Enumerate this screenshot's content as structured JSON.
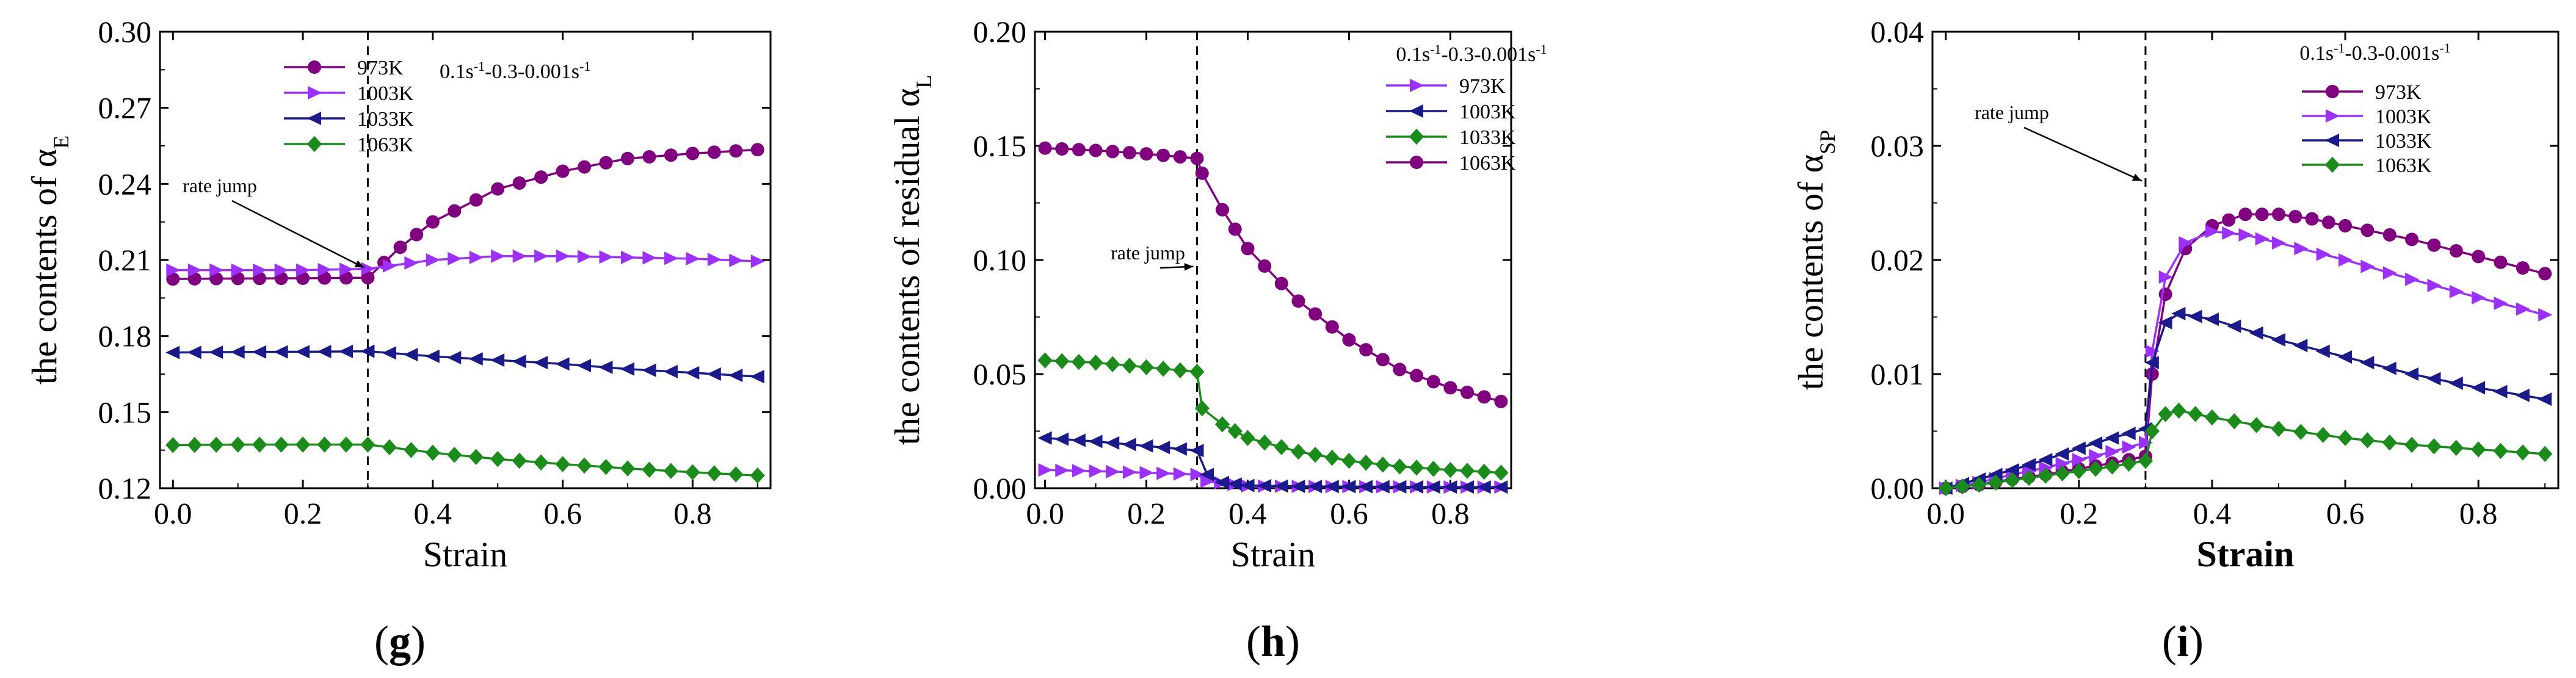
{
  "chart_data": [
    {
      "type": "line",
      "panel_label": "(g)",
      "panel_letter": "g",
      "xlabel": "Strain",
      "ylabel": "the contents of  α",
      "ylabel_sub": "E",
      "xlim": [
        -0.02,
        0.92
      ],
      "ylim": [
        0.12,
        0.3
      ],
      "xticks": [
        0.0,
        0.2,
        0.4,
        0.6,
        0.8
      ],
      "xtick_labels": [
        "0.0",
        "0.2",
        "0.4",
        "0.6",
        "0.8"
      ],
      "yticks": [
        0.12,
        0.15,
        0.18,
        0.21,
        0.24,
        0.27,
        0.3
      ],
      "ytick_labels": [
        "0.12",
        "0.15",
        "0.18",
        "0.21",
        "0.24",
        "0.27",
        "0.30"
      ],
      "rate_jump_x": 0.3,
      "annotation": "rate jump",
      "annotation_point": [
        0.3,
        0.205
      ],
      "condition_label": "0.1s-1-0.3-0.001s-1",
      "condition_parts": [
        "0.1s",
        "-1",
        "-0.3-0.001s",
        "-1"
      ],
      "legend_position": "top-center",
      "series": [
        {
          "name": "973K",
          "color": "#800080",
          "marker": "circle",
          "points": [
            [
              0.0,
              0.2025
            ],
            [
              0.1,
              0.2027
            ],
            [
              0.2,
              0.2028
            ],
            [
              0.3,
              0.203
            ],
            [
              0.35,
              0.215
            ],
            [
              0.4,
              0.225
            ],
            [
              0.5,
              0.238
            ],
            [
              0.6,
              0.245
            ],
            [
              0.7,
              0.25
            ],
            [
              0.8,
              0.252
            ],
            [
              0.9,
              0.2535
            ]
          ]
        },
        {
          "name": "1003K",
          "color": "#9b30ff",
          "marker": "triangle-right",
          "points": [
            [
              0.0,
              0.206
            ],
            [
              0.1,
              0.206
            ],
            [
              0.2,
              0.206
            ],
            [
              0.3,
              0.2065
            ],
            [
              0.4,
              0.21
            ],
            [
              0.5,
              0.2115
            ],
            [
              0.6,
              0.2115
            ],
            [
              0.7,
              0.211
            ],
            [
              0.8,
              0.2105
            ],
            [
              0.9,
              0.2095
            ]
          ]
        },
        {
          "name": "1033K",
          "color": "#1a1a8c",
          "marker": "triangle-left",
          "points": [
            [
              0.0,
              0.1735
            ],
            [
              0.1,
              0.1737
            ],
            [
              0.2,
              0.1738
            ],
            [
              0.3,
              0.174
            ],
            [
              0.4,
              0.172
            ],
            [
              0.5,
              0.1705
            ],
            [
              0.6,
              0.169
            ],
            [
              0.7,
              0.167
            ],
            [
              0.8,
              0.1655
            ],
            [
              0.9,
              0.164
            ]
          ]
        },
        {
          "name": "1063K",
          "color": "#1a8c1a",
          "marker": "diamond",
          "points": [
            [
              0.0,
              0.137
            ],
            [
              0.1,
              0.1372
            ],
            [
              0.2,
              0.1372
            ],
            [
              0.3,
              0.1372
            ],
            [
              0.4,
              0.134
            ],
            [
              0.5,
              0.1315
            ],
            [
              0.6,
              0.1295
            ],
            [
              0.7,
              0.1278
            ],
            [
              0.8,
              0.1263
            ],
            [
              0.9,
              0.125
            ]
          ]
        }
      ]
    },
    {
      "type": "line",
      "panel_label": "(h)",
      "panel_letter": "h",
      "xlabel": "Strain",
      "ylabel": "the contents of  residual α",
      "ylabel_sub": "L",
      "xlim": [
        -0.02,
        0.92
      ],
      "ylim": [
        0.0,
        0.2
      ],
      "xticks": [
        0.0,
        0.2,
        0.4,
        0.6,
        0.8
      ],
      "xtick_labels": [
        "0.0",
        "0.2",
        "0.4",
        "0.6",
        "0.8"
      ],
      "yticks": [
        0.0,
        0.05,
        0.1,
        0.15,
        0.2
      ],
      "ytick_labels": [
        "0.00",
        "0.05",
        "0.10",
        "0.15",
        "0.20"
      ],
      "rate_jump_x": 0.3,
      "annotation": "rate jump",
      "annotation_point": [
        0.3,
        0.095
      ],
      "condition_label": "0.1s-1-0.3-0.001s-1",
      "condition_parts": [
        "0.1s",
        "-1",
        "-0.3-0.001s",
        "-1"
      ],
      "legend_position": "top-right",
      "series": [
        {
          "name": "973K",
          "color": "#9b30ff",
          "marker": "triangle-right",
          "points": [
            [
              0.0,
              0.008
            ],
            [
              0.1,
              0.0075
            ],
            [
              0.2,
              0.0068
            ],
            [
              0.3,
              0.006
            ],
            [
              0.32,
              0.003
            ],
            [
              0.4,
              0.001
            ],
            [
              0.5,
              0.0008
            ],
            [
              0.6,
              0.0007
            ],
            [
              0.7,
              0.0006
            ],
            [
              0.8,
              0.0005
            ],
            [
              0.9,
              0.0005
            ]
          ]
        },
        {
          "name": "1003K",
          "color": "#1a1a8c",
          "marker": "triangle-left",
          "points": [
            [
              0.0,
              0.022
            ],
            [
              0.1,
              0.0205
            ],
            [
              0.2,
              0.0185
            ],
            [
              0.3,
              0.0165
            ],
            [
              0.32,
              0.006
            ],
            [
              0.35,
              0.0025
            ],
            [
              0.4,
              0.0012
            ],
            [
              0.5,
              0.0008
            ],
            [
              0.6,
              0.0007
            ],
            [
              0.7,
              0.0006
            ],
            [
              0.8,
              0.0005
            ],
            [
              0.9,
              0.0005
            ]
          ]
        },
        {
          "name": "1033K",
          "color": "#1a8c1a",
          "marker": "diamond",
          "points": [
            [
              0.0,
              0.056
            ],
            [
              0.1,
              0.055
            ],
            [
              0.2,
              0.053
            ],
            [
              0.3,
              0.051
            ],
            [
              0.31,
              0.035
            ],
            [
              0.35,
              0.028
            ],
            [
              0.4,
              0.022
            ],
            [
              0.5,
              0.016
            ],
            [
              0.6,
              0.012
            ],
            [
              0.7,
              0.0095
            ],
            [
              0.8,
              0.008
            ],
            [
              0.9,
              0.0068
            ]
          ]
        },
        {
          "name": "1063K",
          "color": "#800080",
          "marker": "circle",
          "points": [
            [
              0.0,
              0.149
            ],
            [
              0.1,
              0.148
            ],
            [
              0.2,
              0.1465
            ],
            [
              0.3,
              0.1445
            ],
            [
              0.31,
              0.138
            ],
            [
              0.35,
              0.122
            ],
            [
              0.4,
              0.105
            ],
            [
              0.5,
              0.082
            ],
            [
              0.6,
              0.065
            ],
            [
              0.7,
              0.052
            ],
            [
              0.8,
              0.044
            ],
            [
              0.9,
              0.038
            ]
          ]
        }
      ]
    },
    {
      "type": "line",
      "panel_label": "(i)",
      "panel_letter": "i",
      "xlabel": "Strain",
      "ylabel": "the contents of  α",
      "ylabel_sub": "SP",
      "xlim": [
        -0.02,
        0.92
      ],
      "ylim": [
        0.0,
        0.04
      ],
      "xticks": [
        0.0,
        0.2,
        0.4,
        0.6,
        0.8
      ],
      "xtick_labels": [
        "0.0",
        "0.2",
        "0.4",
        "0.6",
        "0.8"
      ],
      "yticks": [
        0.0,
        0.01,
        0.02,
        0.03,
        0.04
      ],
      "ytick_labels": [
        "0.00",
        "0.01",
        "0.02",
        "0.03",
        "0.04"
      ],
      "rate_jump_x": 0.3,
      "annotation": "rate jump",
      "annotation_point": [
        0.3,
        0.0265
      ],
      "condition_label": "0.1s-1-0.3-0.001s-1",
      "condition_parts": [
        "0.1s",
        "-1",
        "-0.3-0.001s",
        "-1"
      ],
      "legend_position": "top-right",
      "series": [
        {
          "name": "973K",
          "color": "#800080",
          "marker": "circle",
          "points": [
            [
              0.0,
              0.0
            ],
            [
              0.05,
              0.0003
            ],
            [
              0.1,
              0.0008
            ],
            [
              0.15,
              0.0012
            ],
            [
              0.2,
              0.0017
            ],
            [
              0.25,
              0.0022
            ],
            [
              0.3,
              0.0028
            ],
            [
              0.31,
              0.01
            ],
            [
              0.33,
              0.017
            ],
            [
              0.36,
              0.021
            ],
            [
              0.4,
              0.023
            ],
            [
              0.45,
              0.024
            ],
            [
              0.5,
              0.024
            ],
            [
              0.55,
              0.0236
            ],
            [
              0.6,
              0.023
            ],
            [
              0.7,
              0.0218
            ],
            [
              0.8,
              0.0203
            ],
            [
              0.9,
              0.0188
            ]
          ]
        },
        {
          "name": "1003K",
          "color": "#9b30ff",
          "marker": "triangle-right",
          "points": [
            [
              0.0,
              0.0
            ],
            [
              0.05,
              0.0005
            ],
            [
              0.1,
              0.0012
            ],
            [
              0.15,
              0.0018
            ],
            [
              0.2,
              0.0025
            ],
            [
              0.25,
              0.0032
            ],
            [
              0.3,
              0.004
            ],
            [
              0.31,
              0.012
            ],
            [
              0.33,
              0.0185
            ],
            [
              0.36,
              0.0215
            ],
            [
              0.4,
              0.0225
            ],
            [
              0.45,
              0.0222
            ],
            [
              0.5,
              0.0215
            ],
            [
              0.6,
              0.02
            ],
            [
              0.7,
              0.0183
            ],
            [
              0.8,
              0.0167
            ],
            [
              0.9,
              0.0152
            ]
          ]
        },
        {
          "name": "1033K",
          "color": "#1a1a8c",
          "marker": "triangle-left",
          "points": [
            [
              0.0,
              0.0
            ],
            [
              0.05,
              0.0008
            ],
            [
              0.1,
              0.0016
            ],
            [
              0.15,
              0.0025
            ],
            [
              0.2,
              0.0035
            ],
            [
              0.25,
              0.0044
            ],
            [
              0.3,
              0.0052
            ],
            [
              0.31,
              0.011
            ],
            [
              0.33,
              0.0145
            ],
            [
              0.35,
              0.0153
            ],
            [
              0.4,
              0.0148
            ],
            [
              0.5,
              0.013
            ],
            [
              0.6,
              0.0115
            ],
            [
              0.7,
              0.01
            ],
            [
              0.8,
              0.0088
            ],
            [
              0.9,
              0.0078
            ]
          ]
        },
        {
          "name": "1063K",
          "color": "#1a8c1a",
          "marker": "diamond",
          "points": [
            [
              0.0,
              0.0
            ],
            [
              0.05,
              0.0003
            ],
            [
              0.1,
              0.0007
            ],
            [
              0.15,
              0.0011
            ],
            [
              0.2,
              0.0015
            ],
            [
              0.25,
              0.0019
            ],
            [
              0.3,
              0.0024
            ],
            [
              0.31,
              0.005
            ],
            [
              0.33,
              0.0065
            ],
            [
              0.35,
              0.0068
            ],
            [
              0.4,
              0.0062
            ],
            [
              0.5,
              0.0052
            ],
            [
              0.6,
              0.0044
            ],
            [
              0.7,
              0.0038
            ],
            [
              0.8,
              0.0034
            ],
            [
              0.9,
              0.003
            ]
          ]
        }
      ]
    }
  ]
}
